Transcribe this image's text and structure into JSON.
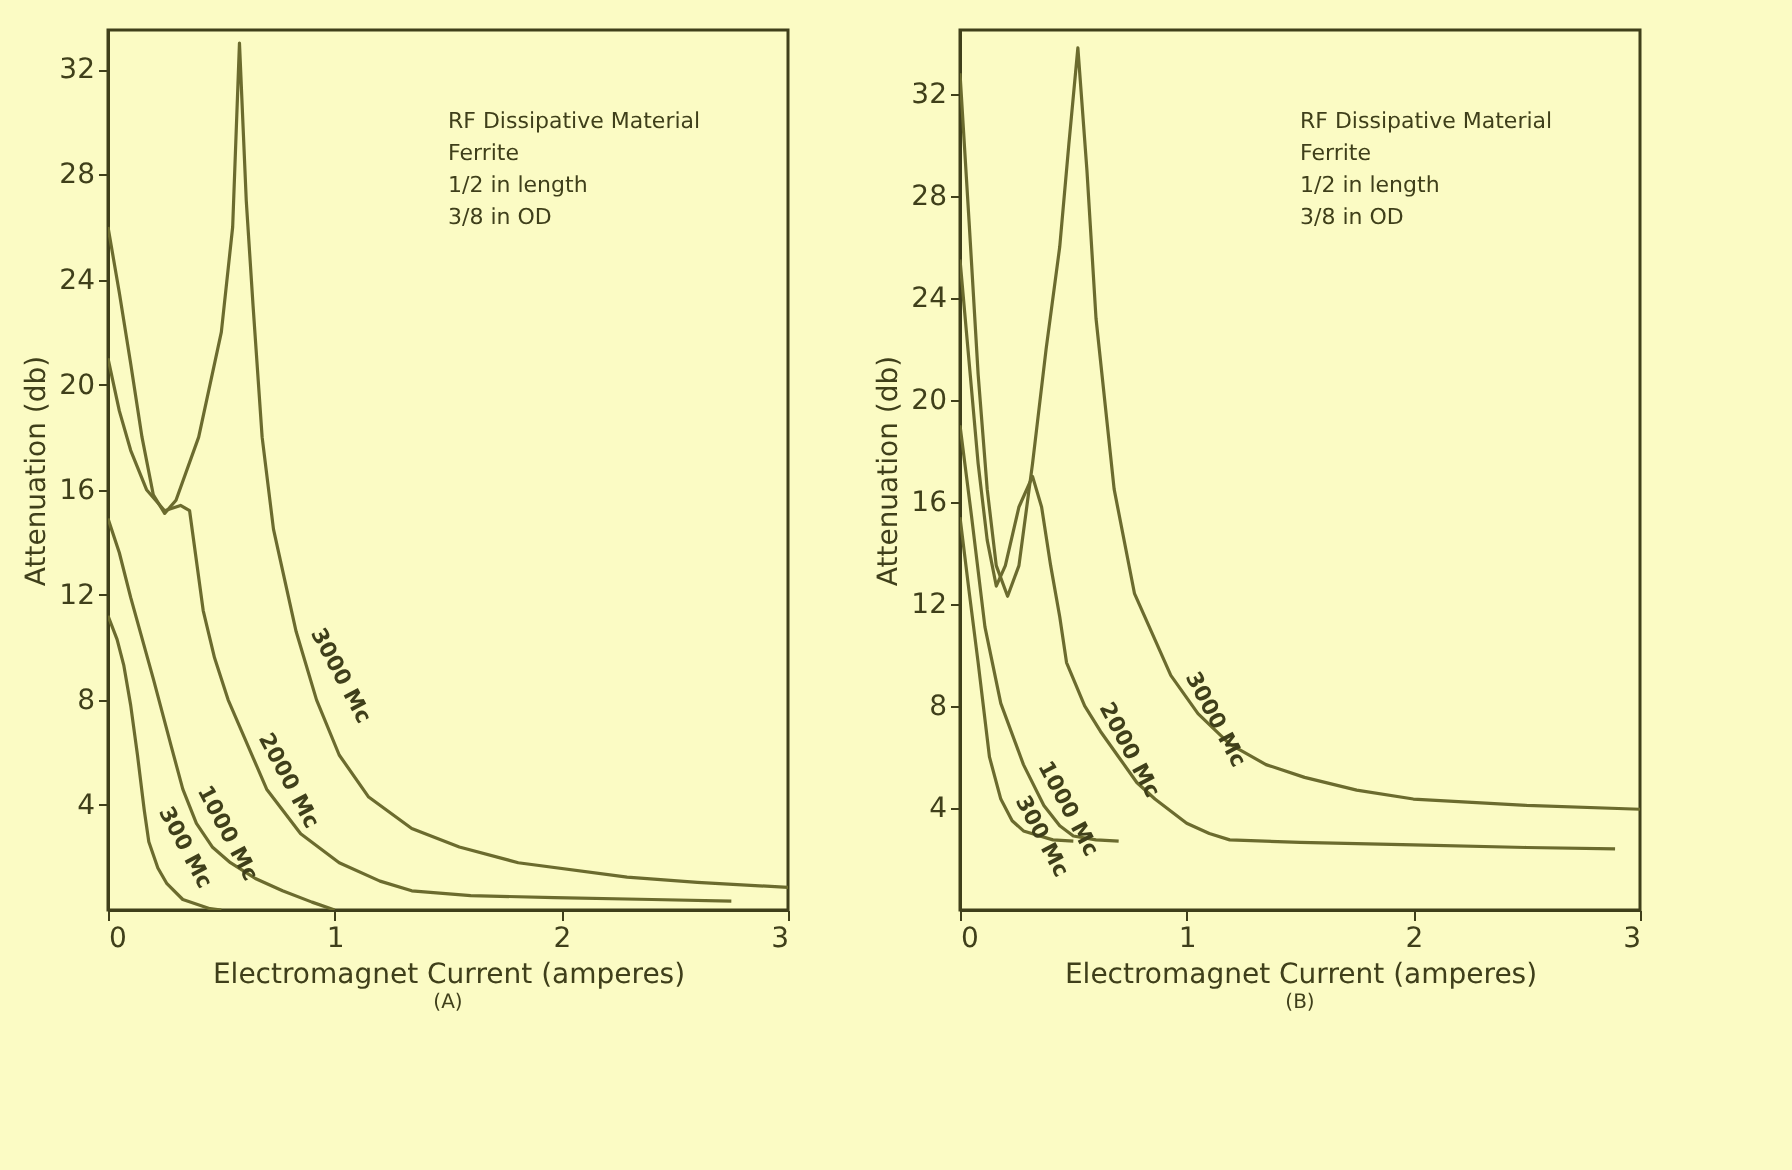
{
  "chart_data": [
    {
      "type": "line",
      "title": "(A)",
      "xlabel": "Electromagnet Current (amperes)",
      "ylabel": "Attenuation (db)",
      "xlim": [
        0,
        3
      ],
      "ylim": [
        0,
        33.5
      ],
      "xticks": [
        0,
        1,
        2,
        3
      ],
      "yticks": [
        4,
        8,
        12,
        16,
        20,
        24,
        28,
        32
      ],
      "grid": false,
      "legend": false,
      "annotations": [
        "RF Dissipative Material",
        "Ferrite",
        "1/2 in length",
        "3/8 in OD"
      ],
      "series": [
        {
          "name": "3000 Mc",
          "color": "#6b6b2e",
          "x": [
            0,
            0.05,
            0.1,
            0.15,
            0.2,
            0.25,
            0.3,
            0.4,
            0.5,
            0.55,
            0.58,
            0.61,
            0.64,
            0.68,
            0.73,
            0.83,
            0.92,
            1.02,
            1.15,
            1.34,
            1.55,
            1.81,
            2.29,
            2.6,
            3
          ],
          "values": [
            26,
            23.5,
            20.8,
            18,
            15.8,
            15.1,
            15.6,
            18,
            22,
            26,
            33,
            27,
            23,
            18,
            14.5,
            10.6,
            8,
            5.9,
            4.3,
            3.1,
            2.4,
            1.8,
            1.25,
            1.05,
            0.86
          ]
        },
        {
          "name": "2000 Mc",
          "color": "#6b6b2e",
          "x": [
            0,
            0.05,
            0.1,
            0.17,
            0.25,
            0.32,
            0.36,
            0.42,
            0.47,
            0.53,
            0.6,
            0.7,
            0.85,
            1.02,
            1.2,
            1.34,
            1.6,
            1.97,
            2.4,
            2.75
          ],
          "values": [
            21,
            19,
            17.5,
            16,
            15.2,
            15.4,
            15.2,
            11.4,
            9.6,
            8,
            6.6,
            4.6,
            2.9,
            1.8,
            1.1,
            0.73,
            0.55,
            0.47,
            0.4,
            0.34
          ]
        },
        {
          "name": "1000 Mc",
          "color": "#6b6b2e",
          "x": [
            0,
            0.05,
            0.1,
            0.2,
            0.28,
            0.33,
            0.39,
            0.46,
            0.54,
            0.65,
            0.77,
            0.9,
            1
          ],
          "values": [
            14.9,
            13.6,
            11.9,
            8.8,
            6.2,
            4.6,
            3.3,
            2.4,
            1.8,
            1.2,
            0.73,
            0.3,
            0
          ]
        },
        {
          "name": "300 Mc",
          "color": "#6b6b2e",
          "x": [
            0,
            0.04,
            0.07,
            0.1,
            0.13,
            0.16,
            0.18,
            0.22,
            0.26,
            0.33,
            0.45,
            0.5
          ],
          "values": [
            11.2,
            10.3,
            9.3,
            7.8,
            5.9,
            3.8,
            2.6,
            1.6,
            1,
            0.4,
            0.05,
            0
          ]
        }
      ]
    },
    {
      "type": "line",
      "title": "(B)",
      "xlabel": "Electromagnet Current (amperes)",
      "ylabel": "Attenuation (db)",
      "xlim": [
        0,
        3
      ],
      "ylim": [
        0,
        34.5
      ],
      "xticks": [
        0,
        1,
        2,
        3
      ],
      "yticks": [
        4,
        8,
        12,
        16,
        20,
        24,
        28,
        32
      ],
      "grid": false,
      "legend": false,
      "annotations": [
        "RF Dissipative Material",
        "Ferrite",
        "1/2 in length",
        "3/8 in OD"
      ],
      "series": [
        {
          "name": "3000 Mc",
          "color": "#6b6b2e",
          "x": [
            0,
            0.04,
            0.08,
            0.12,
            0.16,
            0.21,
            0.26,
            0.32,
            0.38,
            0.44,
            0.48,
            0.52,
            0.56,
            0.6,
            0.68,
            0.77,
            0.93,
            1.05,
            1.19,
            1.35,
            1.52,
            1.75,
            2,
            2.5,
            3
          ],
          "values": [
            32.8,
            27,
            21,
            16.5,
            13.5,
            12.3,
            13.5,
            17.5,
            22,
            26,
            30,
            33.8,
            29,
            23.2,
            16.5,
            12.4,
            9.2,
            7.7,
            6.5,
            5.7,
            5.2,
            4.7,
            4.35,
            4.1,
            3.95
          ]
        },
        {
          "name": "2000 Mc",
          "color": "#6b6b2e",
          "x": [
            0,
            0.04,
            0.08,
            0.12,
            0.16,
            0.2,
            0.26,
            0.32,
            0.36,
            0.4,
            0.44,
            0.47,
            0.55,
            0.62,
            0.7,
            0.78,
            0.86,
            1,
            1.1,
            1.19,
            1.5,
            2,
            2.5,
            2.89
          ],
          "values": [
            25.5,
            21.5,
            17.5,
            14.5,
            12.7,
            13.5,
            15.8,
            17,
            15.8,
            13.5,
            11.5,
            9.7,
            8,
            7,
            6,
            5,
            4.35,
            3.4,
            3,
            2.75,
            2.65,
            2.55,
            2.45,
            2.4
          ]
        },
        {
          "name": "1000 Mc",
          "color": "#6b6b2e",
          "x": [
            0,
            0.05,
            0.11,
            0.18,
            0.28,
            0.37,
            0.44,
            0.5,
            0.6,
            0.7
          ],
          "values": [
            19,
            15.5,
            11.1,
            8.1,
            5.7,
            4.1,
            3.3,
            2.9,
            2.75,
            2.7
          ]
        },
        {
          "name": "300 Mc",
          "color": "#6b6b2e",
          "x": [
            0,
            0.04,
            0.08,
            0.13,
            0.18,
            0.23,
            0.28,
            0.41,
            0.5
          ],
          "values": [
            15.4,
            12.5,
            9.7,
            6,
            4.35,
            3.5,
            3.1,
            2.75,
            2.7
          ]
        }
      ]
    }
  ]
}
